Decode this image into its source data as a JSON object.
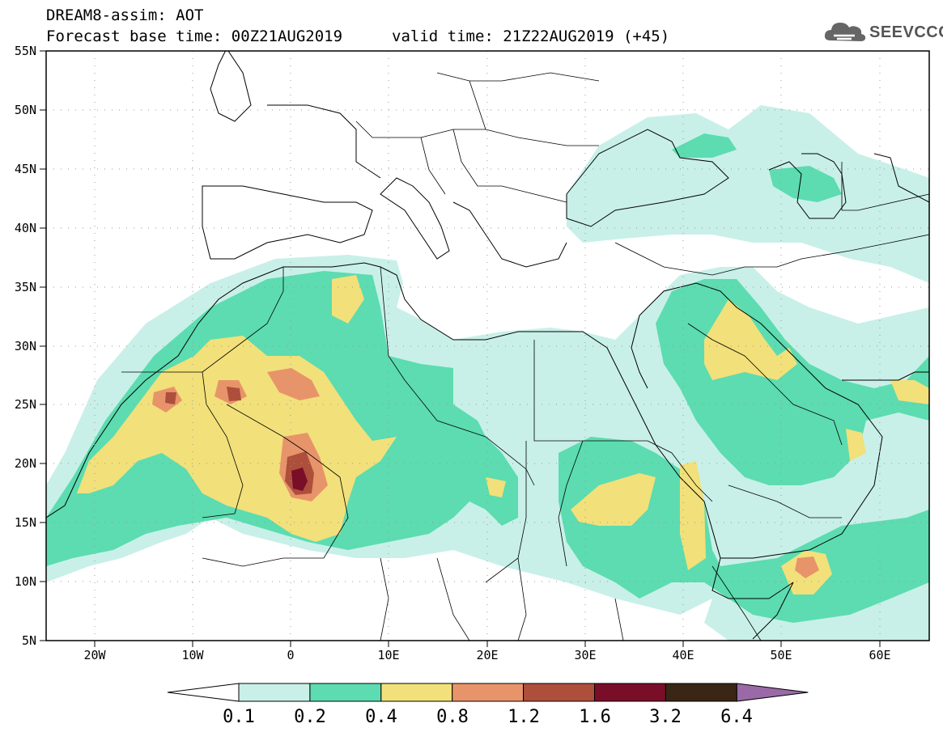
{
  "header": {
    "line1": "DREAM8-assim: AOT",
    "line2": "Forecast base time: 00Z21AUG2019",
    "line3": "valid time: 21Z22AUG2019 (+45)"
  },
  "logo": {
    "text": "SEEVCCC",
    "icon": "cloud-icon"
  },
  "map": {
    "lat_labels": [
      "55N",
      "50N",
      "45N",
      "40N",
      "35N",
      "30N",
      "25N",
      "20N",
      "15N",
      "10N",
      "5N"
    ],
    "lon_labels": [
      "20W",
      "10W",
      "0",
      "10E",
      "20E",
      "30E",
      "40E",
      "50E",
      "60E"
    ],
    "extent": {
      "lon_min": -25,
      "lon_max": 65,
      "lat_min": 5,
      "lat_max": 55
    }
  },
  "colorbar": {
    "colors": [
      "#ffffff",
      "#c8f0e8",
      "#5cdcb0",
      "#f2e07a",
      "#e8946a",
      "#ae4f3c",
      "#7a0e28",
      "#3a2614",
      "#9a6aa8"
    ],
    "labels": [
      "0.1",
      "0.2",
      "0.4",
      "0.8",
      "1.2",
      "1.6",
      "3.2",
      "6.4"
    ]
  }
}
